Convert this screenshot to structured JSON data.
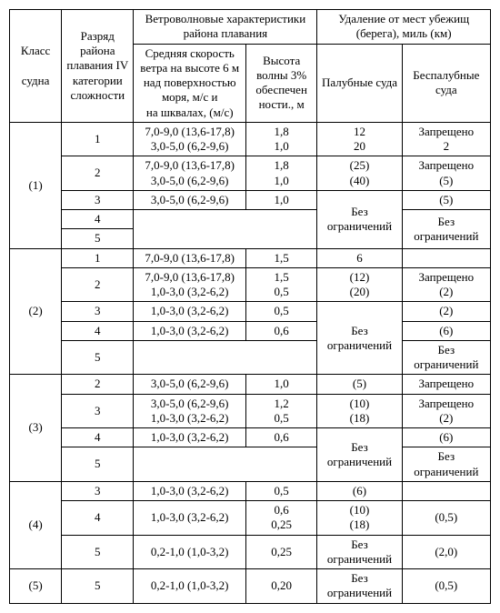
{
  "headers": {
    "col1": "Класс\n\nсудна",
    "col2": "Разряд района плавания IV категории сложности",
    "col_group1": "Ветроволновые характеристики района плавания",
    "col3": "Средняя скорость ветра на высоте 6 м над поверхностью моря, м/с и\nна шквалах, (м/с)",
    "col4": "Высота волны 3% обеспечен ности., м",
    "col_group2": "Удаление от мест убежищ (берега), миль (км)",
    "col5": "Палубные суда",
    "col6": "Беспалубные суда"
  },
  "cells": {
    "r1_class": "(1)",
    "r1_1_rz": "1",
    "r1_1_wind": "7,0-9,0 (13,6-17,8)\n3,0-5,0 (6,2-9,6)",
    "r1_1_wave": "1,8\n1,0",
    "r1_1_deck": "12\n20",
    "r1_1_nodeck": "Запрещено\n2",
    "r1_2_rz": "2",
    "r1_2_wind": "7,0-9,0 (13,6-17,8)\n3,0-5,0 (6,2-9,6)",
    "r1_2_wave": "1,8\n1,0",
    "r1_2_deck": "(25)\n(40)",
    "r1_2_nodeck": "Запрещено\n(5)",
    "r1_3_rz": "3",
    "r1_3_wind": "3,0-5,0 (6,2-9,6)",
    "r1_3_wave": "1,0",
    "r1_3_nodeck": "(5)",
    "r1_4_rz": "4",
    "r1_5_rz": "5",
    "r1_deck_free": "Без ограничений",
    "r1_nodeck_free": "Без ограничений",
    "r2_class": "(2)",
    "r2_1_rz": "1",
    "r2_1_wind": "7,0-9,0 (13,6-17,8)",
    "r2_1_wave": "1,5",
    "r2_1_deck": "6",
    "r2_2_rz": "2",
    "r2_2_wind": "7,0-9,0 (13,6-17,8)\n1,0-3,0 (3,2-6,2)",
    "r2_2_wave": "1,5\n0,5",
    "r2_2_deck": "(12)\n(20)",
    "r2_2_nodeck": "Запрещено\n(2)",
    "r2_3_rz": "3",
    "r2_3_wind": "1,0-3,0 (3,2-6,2)",
    "r2_3_wave": "0,5",
    "r2_3_nodeck": "(2)",
    "r2_4_rz": "4",
    "r2_4_wind": "1,0-3,0 (3,2-6,2)",
    "r2_4_wave": "0,6",
    "r2_4_nodeck": "(6)",
    "r2_5_rz": "5",
    "r2_deck_free": "Без ограничений",
    "r2_nodeck_free": "Без ограничений",
    "r3_class": "(3)",
    "r3_2_rz": "2",
    "r3_2_wind": "3,0-5,0 (6,2-9,6)",
    "r3_2_wave": "1,0",
    "r3_2_deck": "(5)",
    "r3_2_nodeck": "Запрещено",
    "r3_3_rz": "3",
    "r3_3_wind": "3,0-5,0 (6,2-9,6)\n1,0-3,0 (3,2-6,2)",
    "r3_3_wave": "1,2\n0,5",
    "r3_3_deck": "(10)\n(18)",
    "r3_3_nodeck": "Запрещено\n(2)",
    "r3_4_rz": "4",
    "r3_4_wind": "1,0-3,0 (3,2-6,2)",
    "r3_4_wave": "0,6",
    "r3_4_nodeck": "(6)",
    "r3_5_rz": "5",
    "r3_deck_free": "Без ограничений",
    "r3_nodeck_free": "Без ограничений",
    "r4_class": "(4)",
    "r4_3_rz": "3",
    "r4_3_wind": "1,0-3,0 (3,2-6,2)",
    "r4_3_wave": "0,5",
    "r4_3_deck": "(6)",
    "r4_4_rz": "4",
    "r4_4_wind": "1,0-3,0 (3,2-6,2)",
    "r4_4_wave": "0,6\n0,25",
    "r4_4_deck": "(10)\n(18)",
    "r4_4_nodeck": "(0,5)",
    "r4_5_rz": "5",
    "r4_5_wind": "0,2-1,0 (1,0-3,2)",
    "r4_5_wave": "0,25",
    "r4_5_deck": "Без ограничений",
    "r4_5_nodeck": "(2,0)",
    "r5_class": "(5)",
    "r5_5_rz": "5",
    "r5_5_wind": "0,2-1,0 (1,0-3,2)",
    "r5_5_wave": "0,20",
    "r5_5_deck": "Без ограничений",
    "r5_5_nodeck": "(0,5)"
  }
}
